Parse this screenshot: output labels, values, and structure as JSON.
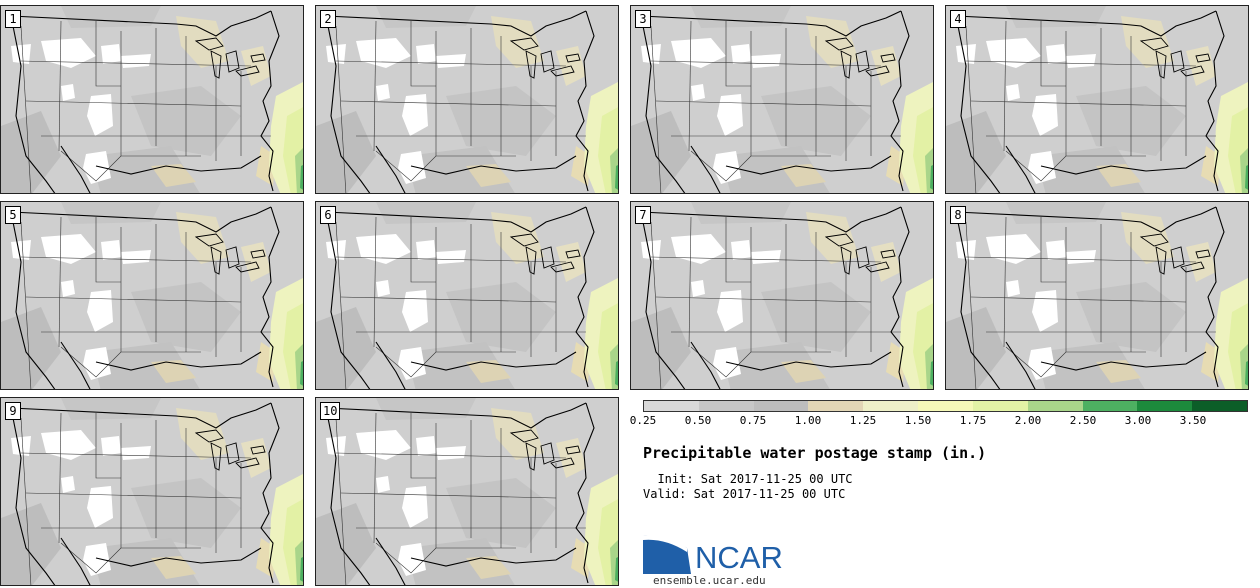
{
  "stamps": [
    {
      "label": "1"
    },
    {
      "label": "2"
    },
    {
      "label": "3"
    },
    {
      "label": "4"
    },
    {
      "label": "5"
    },
    {
      "label": "6"
    },
    {
      "label": "7"
    },
    {
      "label": "8"
    },
    {
      "label": "9"
    },
    {
      "label": "10"
    }
  ],
  "colorbar": {
    "ticks": [
      "0.25",
      "0.50",
      "0.75",
      "1.00",
      "1.25",
      "1.50",
      "1.75",
      "2.00",
      "2.50",
      "3.00",
      "3.50"
    ],
    "colors": [
      "#d9d9d9",
      "#c7c7c7",
      "#bdbdbd",
      "#e2d6b6",
      "#eef0c8",
      "#f6f9b8",
      "#e3f3a6",
      "#a9d58a",
      "#4db061",
      "#1c8a3c",
      "#0c5e28",
      "#1b32a6"
    ]
  },
  "title": "Precipitable water postage stamp (in.)",
  "init": "  Init: Sat 2017-11-25 00 UTC",
  "valid": "Valid: Sat 2017-11-25 00 UTC",
  "logo": {
    "text": "NCAR",
    "url": "ensemble.ucar.edu",
    "accent": "#1f5fa8"
  }
}
